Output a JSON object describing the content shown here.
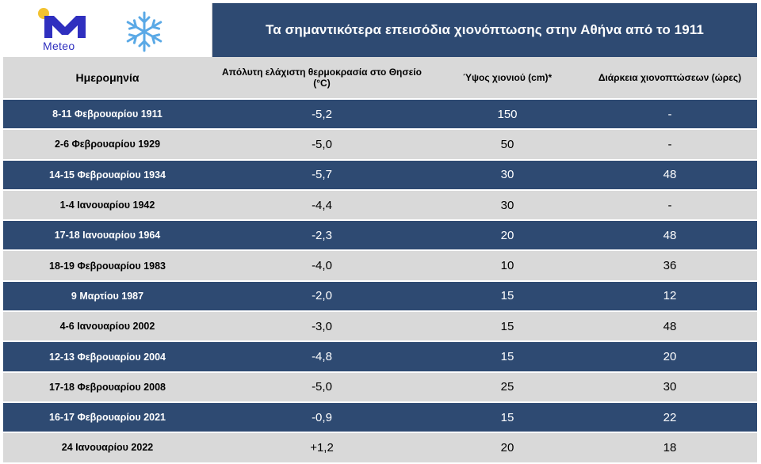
{
  "brand": {
    "logo_text": "Meteo",
    "sun_color": "#f2c230",
    "logo_color": "#2f2fbf",
    "snow_icon": "snowflake-icon"
  },
  "title": "Τα σημαντικότερα επεισόδια χιονόπτωσης στην Αθήνα από το 1911",
  "colors": {
    "header_bg": "#2e4a72",
    "dark_row": "#2e4a72",
    "light_row": "#d9d9d9"
  },
  "table": {
    "headers": [
      "Ημερομηνία",
      "Απόλυτη ελάχιστη θερμοκρασία στο Θησείο (°C)",
      "Ύψος χιονιού (cm)*",
      "Διάρκεια χιονοπτώσεων (ώρες)"
    ],
    "rows": [
      {
        "date": "8-11 Φεβρουαρίου 1911",
        "temp": "-5,2",
        "snow": "150",
        "hours": "-"
      },
      {
        "date": "2-6 Φεβρουαρίου 1929",
        "temp": "-5,0",
        "snow": "50",
        "hours": "-"
      },
      {
        "date": "14-15 Φεβρουαρίου 1934",
        "temp": "-5,7",
        "snow": "30",
        "hours": "48"
      },
      {
        "date": "1-4 Ιανουαρίου 1942",
        "temp": "-4,4",
        "snow": "30",
        "hours": "-"
      },
      {
        "date": "17-18 Ιανουαρίου 1964",
        "temp": "-2,3",
        "snow": "20",
        "hours": "48"
      },
      {
        "date": "18-19 Φεβρουαρίου 1983",
        "temp": "-4,0",
        "snow": "10",
        "hours": "36"
      },
      {
        "date": "9 Μαρτίου 1987",
        "temp": "-2,0",
        "snow": "15",
        "hours": "12"
      },
      {
        "date": "4-6 Ιανουαρίου 2002",
        "temp": "-3,0",
        "snow": "15",
        "hours": "48"
      },
      {
        "date": "12-13 Φεβρουαρίου 2004",
        "temp": "-4,8",
        "snow": "15",
        "hours": "20"
      },
      {
        "date": "17-18 Φεβρουαρίου 2008",
        "temp": "-5,0",
        "snow": "25",
        "hours": "30"
      },
      {
        "date": "16-17 Φεβρουαρίου 2021",
        "temp": "-0,9",
        "snow": "15",
        "hours": "22"
      },
      {
        "date": "24 Ιανουαρίου 2022",
        "temp": "+1,2",
        "snow": "20",
        "hours": "18"
      }
    ]
  }
}
